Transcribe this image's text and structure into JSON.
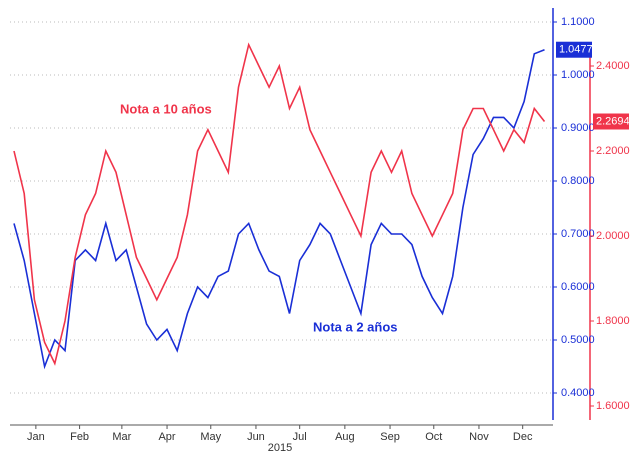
{
  "chart_data": {
    "type": "line",
    "xlabel": "2015",
    "x": [
      0,
      7,
      14,
      21,
      28,
      35,
      42,
      49,
      56,
      63,
      70,
      77,
      84,
      91,
      98,
      105,
      112,
      119,
      126,
      133,
      140,
      147,
      154,
      161,
      168,
      175,
      182,
      189,
      196,
      203,
      210,
      217,
      224,
      231,
      238,
      245,
      252,
      259,
      266,
      273,
      280,
      287,
      294,
      301,
      308,
      315,
      322,
      329,
      336,
      343,
      350,
      357,
      364
    ],
    "xlim": [
      0,
      365
    ],
    "xticks": [
      {
        "value": 15,
        "label": "Jan"
      },
      {
        "value": 45,
        "label": "Feb"
      },
      {
        "value": 74,
        "label": "Mar"
      },
      {
        "value": 105,
        "label": "Apr"
      },
      {
        "value": 135,
        "label": "May"
      },
      {
        "value": 166,
        "label": "Jun"
      },
      {
        "value": 196,
        "label": "Jul"
      },
      {
        "value": 227,
        "label": "Aug"
      },
      {
        "value": 258,
        "label": "Sep"
      },
      {
        "value": 288,
        "label": "Oct"
      },
      {
        "value": 319,
        "label": "Nov"
      },
      {
        "value": 349,
        "label": "Dec"
      }
    ],
    "ylim": [
      0.4,
      1.1
    ],
    "yticks": [
      {
        "value": 0.4,
        "label": "0.4000"
      },
      {
        "value": 0.5,
        "label": "0.5000"
      },
      {
        "value": 0.6,
        "label": "0.6000"
      },
      {
        "value": 0.7,
        "label": "0.7000"
      },
      {
        "value": 0.8,
        "label": "0.8000"
      },
      {
        "value": 0.9,
        "label": "0.9000"
      },
      {
        "value": 1.0,
        "label": "1.0000"
      },
      {
        "value": 1.1,
        "label": "1.1000"
      }
    ],
    "y2lim": [
      1.6,
      2.4
    ],
    "y2ticks": [
      {
        "value": 1.6,
        "label": "1.6000"
      },
      {
        "value": 1.8,
        "label": "1.8000"
      },
      {
        "value": 2.0,
        "label": "2.0000"
      },
      {
        "value": 2.2,
        "label": "2.2000"
      },
      {
        "value": 2.4,
        "label": "2.4000"
      }
    ],
    "series": [
      {
        "name": "Nota a 2 años",
        "color": "#1a2fd6",
        "values": [
          0.72,
          0.65,
          0.55,
          0.45,
          0.5,
          0.48,
          0.65,
          0.67,
          0.65,
          0.72,
          0.65,
          0.67,
          0.6,
          0.53,
          0.5,
          0.52,
          0.48,
          0.55,
          0.6,
          0.58,
          0.62,
          0.63,
          0.7,
          0.72,
          0.67,
          0.63,
          0.62,
          0.55,
          0.65,
          0.68,
          0.72,
          0.7,
          0.65,
          0.6,
          0.55,
          0.68,
          0.72,
          0.7,
          0.7,
          0.68,
          0.62,
          0.58,
          0.55,
          0.62,
          0.75,
          0.85,
          0.88,
          0.92,
          0.92,
          0.9,
          0.95,
          1.04,
          1.0477
        ]
      },
      {
        "name": "Nota a 10 años",
        "color": "#f0344a",
        "axis": "y2",
        "values": [
          2.2,
          2.1,
          1.85,
          1.75,
          1.7,
          1.8,
          1.95,
          2.05,
          2.1,
          2.2,
          2.15,
          2.05,
          1.95,
          1.9,
          1.85,
          1.9,
          1.95,
          2.05,
          2.2,
          2.25,
          2.2,
          2.15,
          2.35,
          2.45,
          2.4,
          2.35,
          2.4,
          2.3,
          2.35,
          2.25,
          2.2,
          2.15,
          2.1,
          2.05,
          2.0,
          2.15,
          2.2,
          2.15,
          2.2,
          2.1,
          2.05,
          2.0,
          2.05,
          2.1,
          2.25,
          2.3,
          2.3,
          2.25,
          2.2,
          2.25,
          2.22,
          2.3,
          2.2694
        ]
      }
    ]
  }
}
